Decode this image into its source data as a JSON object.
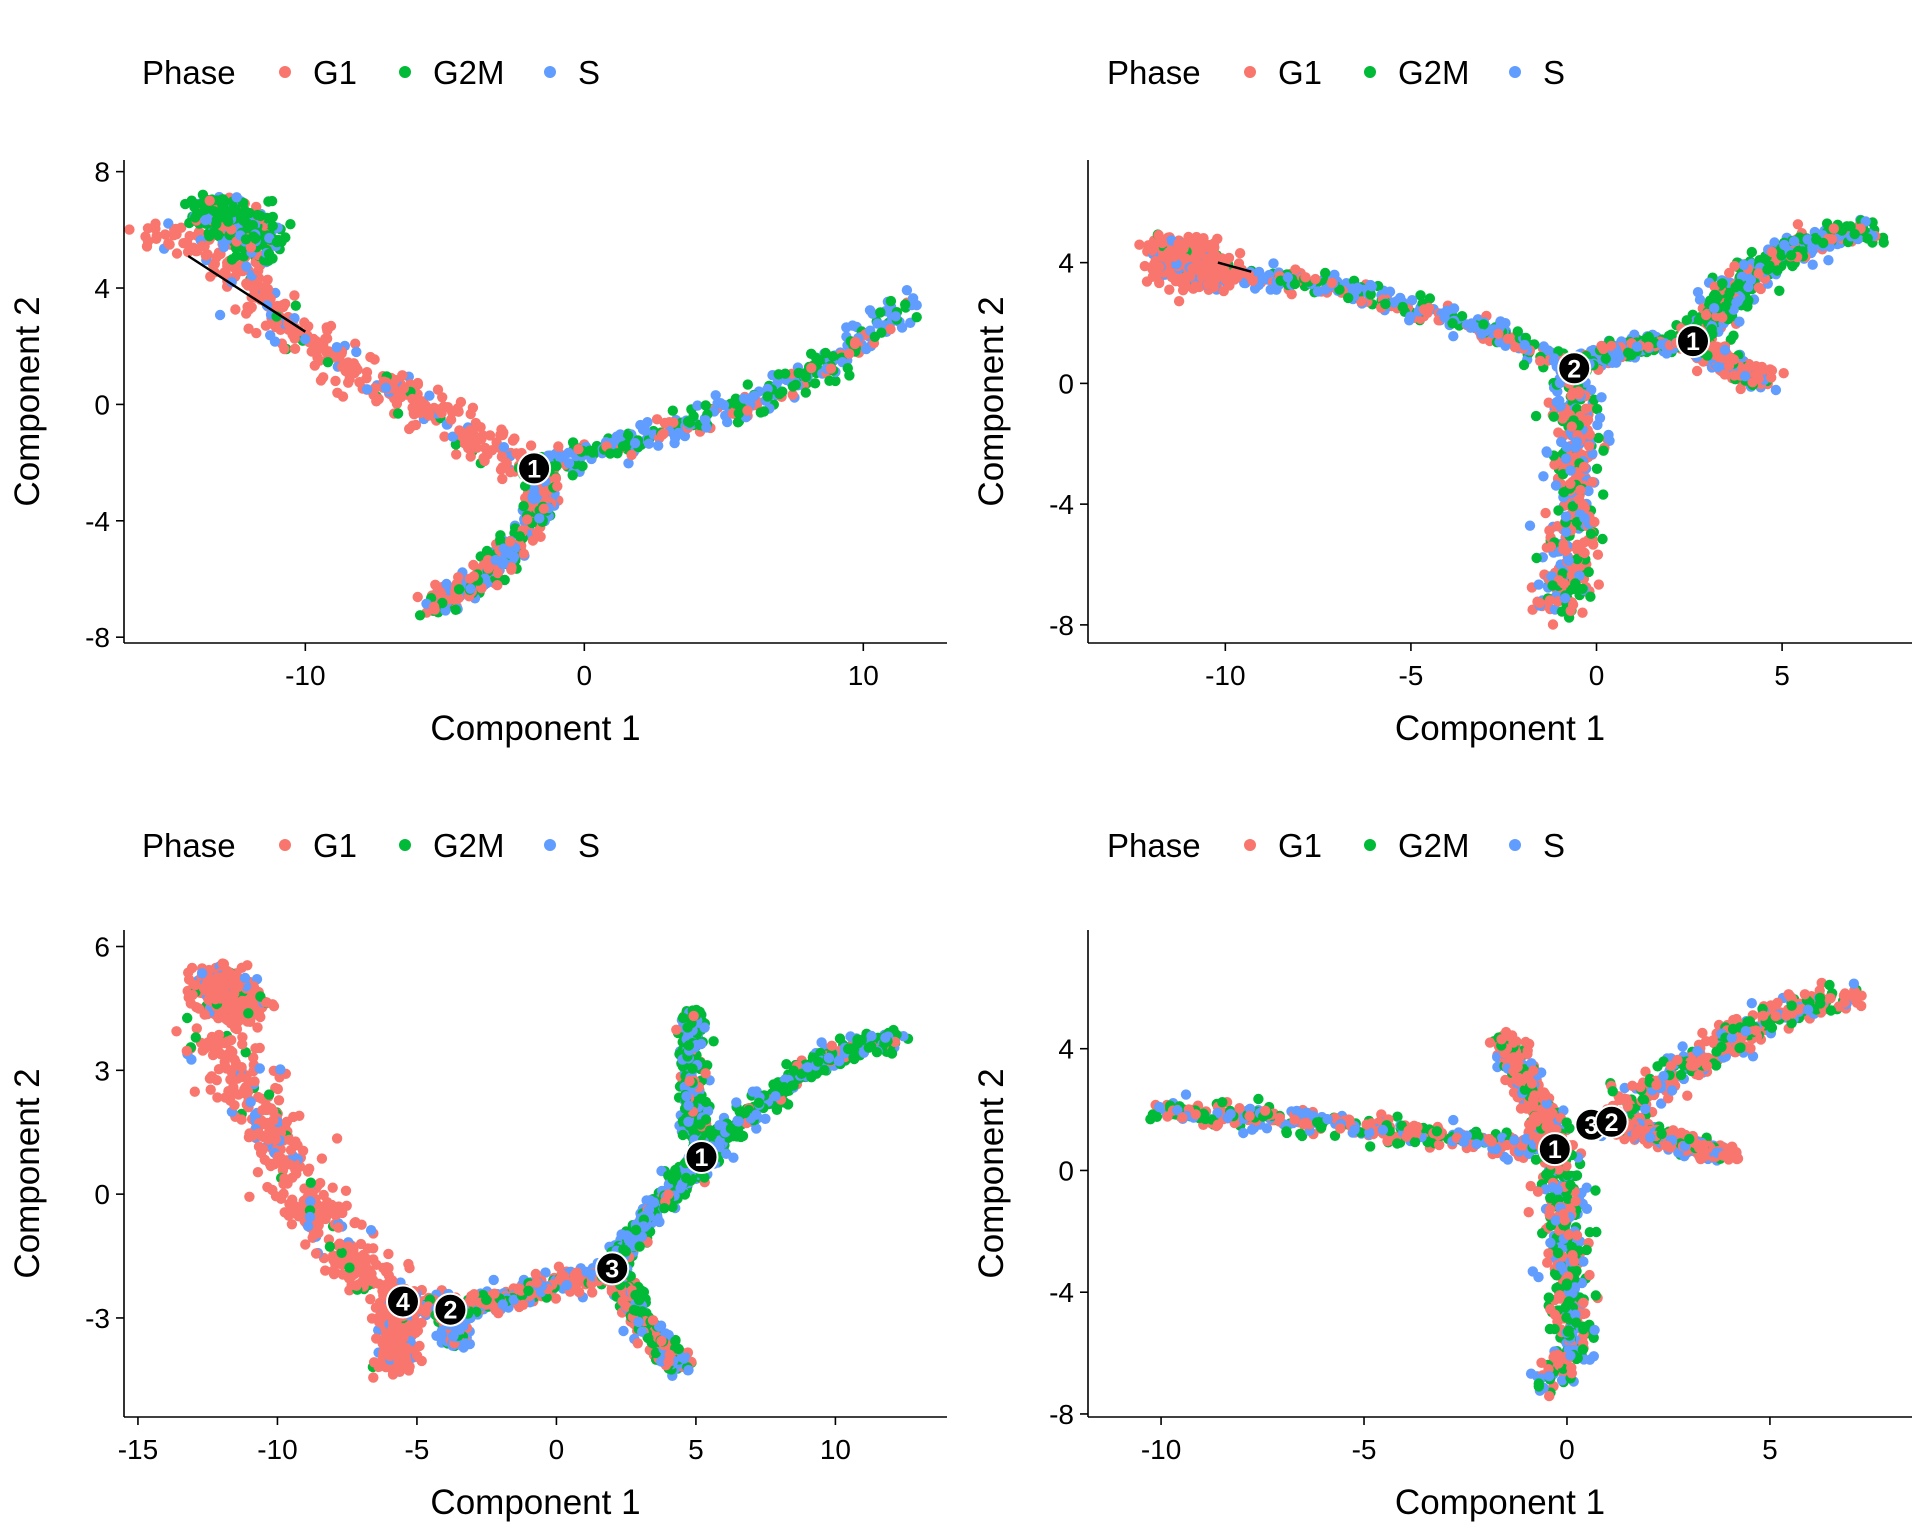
{
  "colors": {
    "G1": "#F8766D",
    "G2M": "#00BA38",
    "S": "#619CFF"
  },
  "legend": {
    "title": "Phase",
    "entries": [
      "G1",
      "G2M",
      "S"
    ]
  },
  "chart_data": [
    {
      "type": "scatter",
      "xlabel": "Component 1",
      "ylabel": "Component 2",
      "xlim": [
        -16.5,
        13
      ],
      "ylim": [
        -8.2,
        8.4
      ],
      "xticks": [
        -10,
        0,
        10
      ],
      "yticks": [
        -8,
        -4,
        0,
        4,
        8
      ],
      "legend_position": "top",
      "grid": false,
      "branch_points": [
        {
          "label": "1",
          "x": -1.8,
          "y": -2.2
        }
      ],
      "trajectory": [
        [
          -14.2,
          5.1
        ],
        [
          -10,
          2.5
        ]
      ],
      "branches": [
        {
          "path": [
            [
              -15.5,
              5.8
            ],
            [
              -13,
              5.5
            ],
            [
              -11,
              3
            ],
            [
              -8,
              1
            ],
            [
              -4,
              -1
            ],
            [
              -1.8,
              -2.2
            ]
          ],
          "mix": [
            0.85,
            0.05,
            0.1
          ],
          "width": 1.0
        },
        {
          "path": [
            [
              -13.5,
              6.8
            ],
            [
              -12.5,
              6.4
            ],
            [
              -11.5,
              5.4
            ]
          ],
          "mix": [
            0.15,
            0.7,
            0.15
          ],
          "width": 0.9
        },
        {
          "path": [
            [
              -1.8,
              -2.2
            ],
            [
              2,
              -1.2
            ],
            [
              6,
              0
            ],
            [
              9,
              1.5
            ],
            [
              11.8,
              3.5
            ]
          ],
          "mix": [
            0.15,
            0.4,
            0.45
          ],
          "width": 0.7
        },
        {
          "path": [
            [
              -1.8,
              -2.2
            ],
            [
              -1.5,
              -3.5
            ],
            [
              -3,
              -5.5
            ],
            [
              -5.5,
              -7
            ]
          ],
          "mix": [
            0.45,
            0.25,
            0.3
          ],
          "width": 0.6
        }
      ]
    },
    {
      "type": "scatter",
      "xlabel": "Component 1",
      "ylabel": "Component 2",
      "xlim": [
        -13.7,
        8.5
      ],
      "ylim": [
        -8.6,
        7.4
      ],
      "xticks": [
        -10,
        -5,
        0,
        5
      ],
      "yticks": [
        -8,
        -4,
        0,
        4
      ],
      "legend_position": "top",
      "grid": false,
      "branch_points": [
        {
          "label": "2",
          "x": -0.6,
          "y": 0.5
        },
        {
          "label": "1",
          "x": 2.6,
          "y": 1.4
        }
      ],
      "trajectory": [
        [
          -10.2,
          4.0
        ],
        [
          -9.3,
          3.7
        ]
      ],
      "branches": [
        {
          "path": [
            [
              -11,
              3.8
            ],
            [
              -7,
              3.2
            ],
            [
              -3,
              1.8
            ],
            [
              -0.6,
              0.5
            ]
          ],
          "mix": [
            0.25,
            0.3,
            0.45
          ],
          "width": 0.6
        },
        {
          "path": [
            [
              -11.4,
              4.4
            ],
            [
              -10.6,
              3.6
            ]
          ],
          "mix": [
            0.85,
            0.05,
            0.1
          ],
          "width": 1.1
        },
        {
          "path": [
            [
              -0.6,
              0.5
            ],
            [
              -0.5,
              -3
            ],
            [
              -0.8,
              -6.5
            ],
            [
              -1.2,
              -7.6
            ]
          ],
          "mix": [
            0.45,
            0.3,
            0.25
          ],
          "width": 0.9
        },
        {
          "path": [
            [
              -0.6,
              0.5
            ],
            [
              1,
              1.3
            ],
            [
              2.6,
              1.4
            ]
          ],
          "mix": [
            0.25,
            0.35,
            0.4
          ],
          "width": 0.5
        },
        {
          "path": [
            [
              2.6,
              1.4
            ],
            [
              4,
              3.5
            ],
            [
              6,
              4.8
            ],
            [
              7.4,
              5.1
            ]
          ],
          "mix": [
            0.25,
            0.45,
            0.3
          ],
          "width": 0.8
        },
        {
          "path": [
            [
              2.6,
              1.4
            ],
            [
              3.8,
              0.4
            ],
            [
              4.6,
              0.1
            ]
          ],
          "mix": [
            0.7,
            0.1,
            0.2
          ],
          "width": 0.5
        }
      ]
    },
    {
      "type": "scatter",
      "xlabel": "Component 1",
      "ylabel": "Component 2",
      "xlim": [
        -15.5,
        14
      ],
      "ylim": [
        -5.4,
        6.4
      ],
      "xticks": [
        -15,
        -10,
        -5,
        0,
        5,
        10
      ],
      "yticks": [
        -3,
        0,
        3,
        6
      ],
      "legend_position": "top",
      "grid": false,
      "branch_points": [
        {
          "label": "1",
          "x": 5.2,
          "y": 0.9
        },
        {
          "label": "3",
          "x": 2.0,
          "y": -1.8
        },
        {
          "label": "4",
          "x": -5.5,
          "y": -2.6
        },
        {
          "label": "2",
          "x": -3.8,
          "y": -2.8
        }
      ],
      "trajectory": [],
      "branches": [
        {
          "path": [
            [
              -12.5,
              4
            ],
            [
              -10.5,
              2
            ],
            [
              -9,
              0
            ],
            [
              -7,
              -2
            ],
            [
              -5.5,
              -2.6
            ]
          ],
          "mix": [
            0.88,
            0.04,
            0.08
          ],
          "width": 1.1
        },
        {
          "path": [
            [
              -12.2,
              5.2
            ],
            [
              -11.3,
              4.4
            ]
          ],
          "mix": [
            0.8,
            0.08,
            0.12
          ],
          "width": 1.0
        },
        {
          "path": [
            [
              -5.5,
              -2.6
            ],
            [
              -3.8,
              -2.8
            ],
            [
              -1,
              -2.4
            ],
            [
              2,
              -1.8
            ]
          ],
          "mix": [
            0.5,
            0.15,
            0.35
          ],
          "width": 0.6
        },
        {
          "path": [
            [
              -5.5,
              -2.6
            ],
            [
              -5.8,
              -4.2
            ]
          ],
          "mix": [
            0.9,
            0.03,
            0.07
          ],
          "width": 0.6
        },
        {
          "path": [
            [
              -3.8,
              -2.8
            ],
            [
              -3.6,
              -3.6
            ]
          ],
          "mix": [
            0.3,
            0.15,
            0.55
          ],
          "width": 0.4
        },
        {
          "path": [
            [
              2,
              -1.8
            ],
            [
              3.6,
              -0.3
            ],
            [
              5.2,
              0.9
            ]
          ],
          "mix": [
            0.1,
            0.4,
            0.5
          ],
          "width": 0.5
        },
        {
          "path": [
            [
              2,
              -1.8
            ],
            [
              3,
              -3
            ],
            [
              4.5,
              -4.2
            ]
          ],
          "mix": [
            0.25,
            0.45,
            0.3
          ],
          "width": 0.5
        },
        {
          "path": [
            [
              5.2,
              0.9
            ],
            [
              4.8,
              2.5
            ],
            [
              4.8,
              4.4
            ]
          ],
          "mix": [
            0.1,
            0.6,
            0.3
          ],
          "width": 0.45
        },
        {
          "path": [
            [
              5.2,
              0.9
            ],
            [
              8,
              2.5
            ],
            [
              10,
              3.5
            ],
            [
              12,
              3.7
            ]
          ],
          "mix": [
            0.1,
            0.55,
            0.35
          ],
          "width": 0.6
        }
      ]
    },
    {
      "type": "scatter",
      "xlabel": "Component 1",
      "ylabel": "Component 2",
      "xlim": [
        -11.8,
        8.5
      ],
      "ylim": [
        -8.1,
        7.9
      ],
      "xticks": [
        -10,
        -5,
        0,
        5
      ],
      "yticks": [
        -8,
        -4,
        0,
        4
      ],
      "legend_position": "top",
      "grid": false,
      "branch_points": [
        {
          "label": "1",
          "x": -0.3,
          "y": 0.7
        },
        {
          "label": "3",
          "x": 0.6,
          "y": 1.5
        },
        {
          "label": "2",
          "x": 1.1,
          "y": 1.6
        }
      ],
      "trajectory": [],
      "branches": [
        {
          "path": [
            [
              -10,
              2
            ],
            [
              -6,
              1.5
            ],
            [
              -3,
              1.1
            ],
            [
              -0.3,
              0.7
            ]
          ],
          "mix": [
            0.45,
            0.25,
            0.3
          ],
          "width": 0.7
        },
        {
          "path": [
            [
              -0.3,
              0.7
            ],
            [
              0,
              -3
            ],
            [
              0.1,
              -6
            ],
            [
              -0.5,
              -7
            ]
          ],
          "mix": [
            0.4,
            0.35,
            0.25
          ],
          "width": 0.8
        },
        {
          "path": [
            [
              -0.3,
              0.7
            ],
            [
              -0.8,
              2.5
            ],
            [
              -1.5,
              4.2
            ]
          ],
          "mix": [
            0.65,
            0.2,
            0.15
          ],
          "width": 0.6
        },
        {
          "path": [
            [
              1.1,
              1.6
            ],
            [
              3,
              3.5
            ],
            [
              5,
              5
            ],
            [
              7,
              5.8
            ]
          ],
          "mix": [
            0.6,
            0.2,
            0.2
          ],
          "width": 0.8
        },
        {
          "path": [
            [
              1.1,
              1.6
            ],
            [
              2.5,
              1
            ],
            [
              4,
              0.5
            ]
          ],
          "mix": [
            0.55,
            0.15,
            0.3
          ],
          "width": 0.5
        }
      ]
    }
  ]
}
